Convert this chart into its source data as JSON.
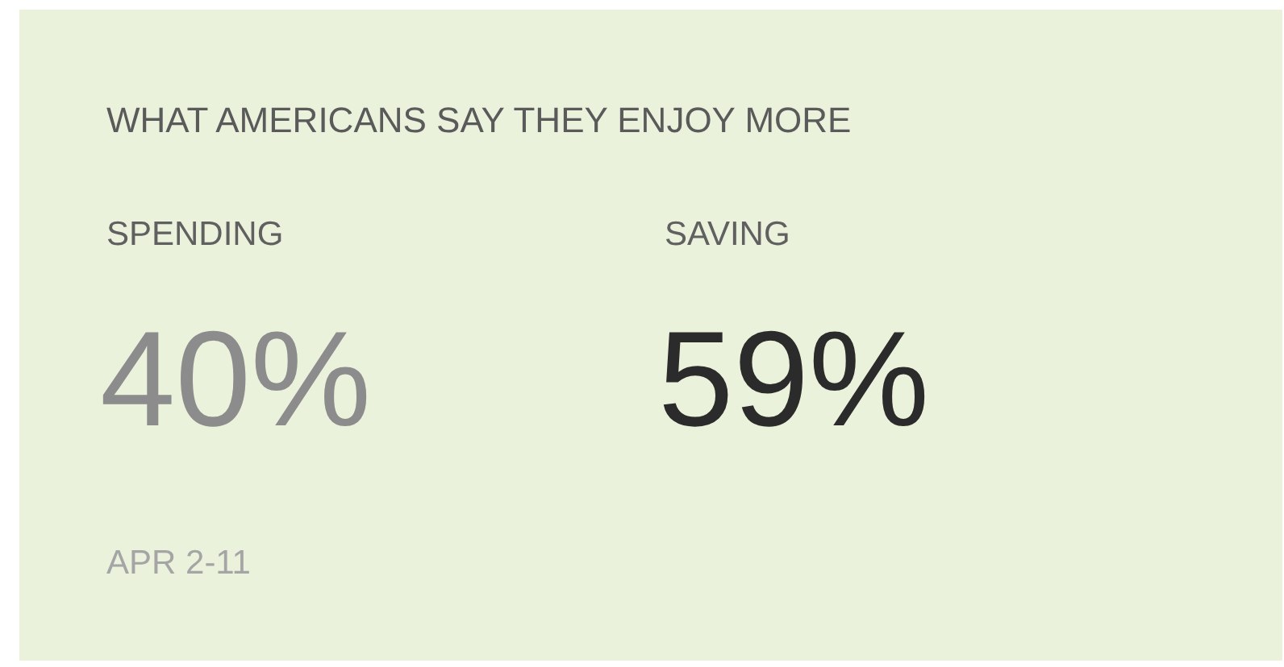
{
  "chart_data": {
    "type": "other",
    "title": "WHAT AMERICANS SAY THEY ENJOY MORE",
    "categories": [
      "SPENDING",
      "SAVING"
    ],
    "values": [
      40,
      59
    ],
    "value_labels": [
      "40%",
      "59%"
    ],
    "colors": [
      "#8c8c8c",
      "#2b2b2b"
    ],
    "annotations": [
      "APR 2-11"
    ]
  }
}
